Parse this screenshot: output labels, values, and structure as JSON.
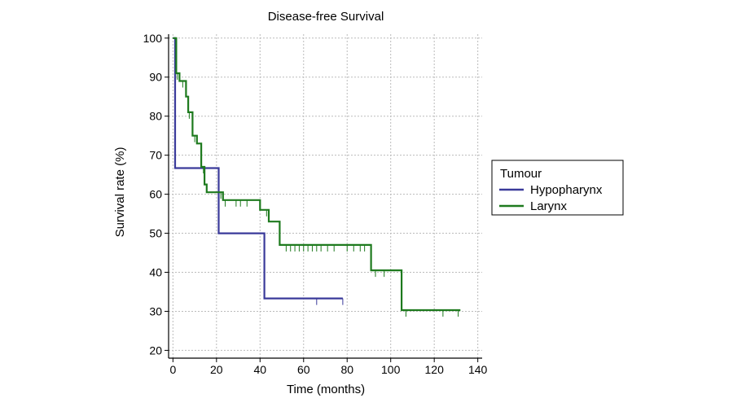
{
  "chart_data": {
    "type": "line",
    "step": true,
    "title": "Disease-free Survival",
    "xlabel": "Time (months)",
    "ylabel": "Survival rate (%)",
    "xlim": [
      -2,
      142
    ],
    "ylim": [
      18,
      101
    ],
    "xticks": [
      0,
      20,
      40,
      60,
      80,
      100,
      120,
      140
    ],
    "yticks": [
      20,
      30,
      40,
      50,
      60,
      70,
      80,
      90,
      100
    ],
    "grid": true,
    "legend": {
      "title": "Tumour",
      "placement": "right"
    },
    "series": [
      {
        "name": "Hypopharynx",
        "color": "#3a3a9a",
        "points": [
          [
            0,
            100
          ],
          [
            1,
            100
          ],
          [
            1,
            66.7
          ],
          [
            21,
            66.7
          ],
          [
            21,
            50
          ],
          [
            42,
            50
          ],
          [
            42,
            33.3
          ],
          [
            78,
            33.3
          ]
        ],
        "censored": [
          66,
          78
        ]
      },
      {
        "name": "Larynx",
        "color": "#1e7a1e",
        "points": [
          [
            0,
            100
          ],
          [
            1.5,
            100
          ],
          [
            1.5,
            91
          ],
          [
            3,
            91
          ],
          [
            3,
            89
          ],
          [
            6,
            89
          ],
          [
            6,
            85
          ],
          [
            7,
            85
          ],
          [
            7,
            81
          ],
          [
            9,
            81
          ],
          [
            9,
            75
          ],
          [
            11,
            75
          ],
          [
            11,
            73
          ],
          [
            13,
            73
          ],
          [
            13,
            67
          ],
          [
            14.5,
            67
          ],
          [
            14.5,
            62.5
          ],
          [
            15.5,
            62.5
          ],
          [
            15.5,
            60.5
          ],
          [
            23,
            60.5
          ],
          [
            23,
            58.5
          ],
          [
            40,
            58.5
          ],
          [
            40,
            56
          ],
          [
            44,
            56
          ],
          [
            44,
            53
          ],
          [
            49,
            53
          ],
          [
            49,
            47
          ],
          [
            91,
            47
          ],
          [
            91,
            40.5
          ],
          [
            105,
            40.5
          ],
          [
            105,
            30.3
          ],
          [
            132,
            30.3
          ]
        ],
        "censored": [
          2,
          4.5,
          7.5,
          10,
          14,
          22,
          24,
          29,
          31,
          34,
          43,
          52,
          54,
          56,
          58,
          60,
          62,
          64,
          66,
          68,
          71,
          74,
          80,
          83,
          86,
          88,
          93,
          97,
          107,
          124,
          131
        ]
      }
    ]
  }
}
